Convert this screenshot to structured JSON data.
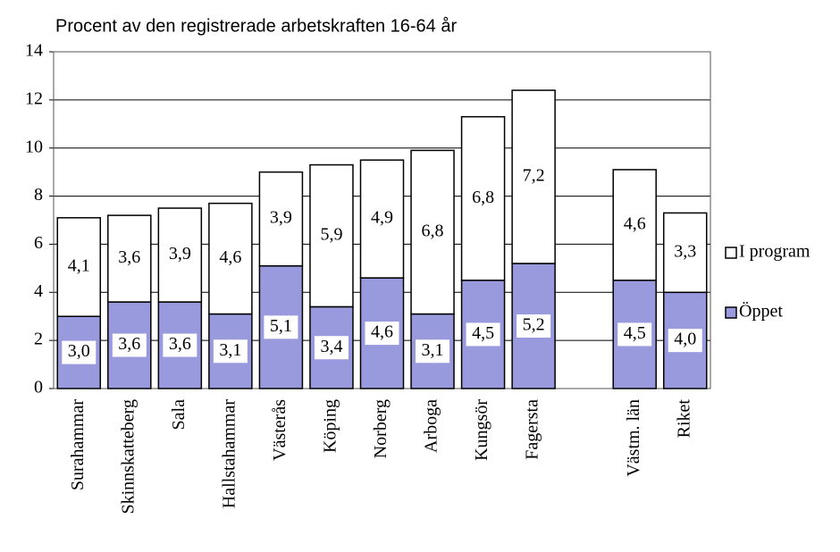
{
  "chart_data": {
    "type": "stacked_bar",
    "title": "Procent av den registrerade arbetskraften 16-64 år",
    "categories": [
      "Surahammar",
      "Skinnskatteberg",
      "Sala",
      "Hallstahammar",
      "Västerås",
      "Köping",
      "Norberg",
      "Arboga",
      "Kungsör",
      "Fagersta",
      null,
      "Västm. län",
      "Riket"
    ],
    "series": [
      {
        "name": "Öppet",
        "color": "#9999dd",
        "values": [
          3.0,
          3.6,
          3.6,
          3.1,
          5.1,
          3.4,
          4.6,
          3.1,
          4.5,
          5.2,
          null,
          4.5,
          4.0
        ],
        "value_labels": [
          "3,0",
          "3,6",
          "3,6",
          "3,1",
          "5,1",
          "3,4",
          "4,6",
          "3,1",
          "4,5",
          "5,2",
          null,
          "4,5",
          "4,0"
        ]
      },
      {
        "name": "I program",
        "color": "#ffffff",
        "values": [
          4.1,
          3.6,
          3.9,
          4.6,
          3.9,
          5.9,
          4.9,
          6.8,
          6.8,
          7.2,
          null,
          4.6,
          3.3
        ],
        "value_labels": [
          "4,1",
          "3,6",
          "3,9",
          "4,6",
          "3,9",
          "5,9",
          "4,9",
          "6,8",
          "6,8",
          "7,2",
          null,
          "4,6",
          "3,3"
        ]
      }
    ],
    "ylim": [
      0,
      14
    ],
    "yticks": [
      0,
      2,
      4,
      6,
      8,
      10,
      12,
      14
    ],
    "grid": true,
    "legend": "right"
  }
}
